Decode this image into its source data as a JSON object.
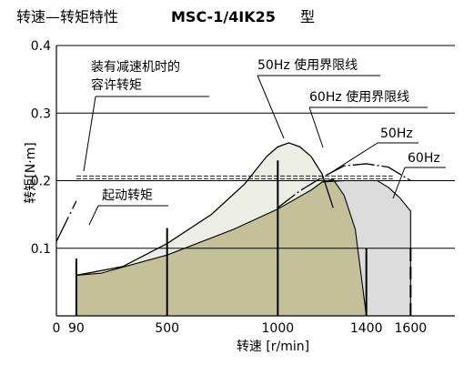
{
  "chart_data": {
    "type": "area",
    "title_prefix": "转速—转矩特性",
    "model": "MSC-1/4IK25",
    "model_suffix": "型",
    "xlabel": "转速 [r/min]",
    "ylabel": "转矩[N·m]",
    "xlim": [
      0,
      1800
    ],
    "ylim": [
      0,
      0.4
    ],
    "x_ticks": [
      {
        "value": 0,
        "label": "0"
      },
      {
        "value": 90,
        "label": "90"
      },
      {
        "value": 500,
        "label": "500"
      },
      {
        "value": 1000,
        "label": "1000"
      },
      {
        "value": 1400,
        "label": "1400"
      },
      {
        "value": 1600,
        "label": "1600"
      }
    ],
    "y_ticks": [
      {
        "value": 0.1,
        "label": "0.1"
      },
      {
        "value": 0.2,
        "label": "0.2"
      },
      {
        "value": 0.3,
        "label": "0.3"
      },
      {
        "value": 0.4,
        "label": "0.4"
      }
    ],
    "grid": {
      "horizontal": true,
      "vertical": false
    },
    "colors": {
      "zone_50hz": "#c4c19a",
      "zone_60hz": "#dcdcdc",
      "zone_60hz_light": "#eceee6",
      "line": "#000000"
    },
    "series": [
      {
        "name": "50Hz",
        "x": [
          90,
          200,
          500,
          800,
          1000,
          1150,
          1200,
          1250,
          1300,
          1350,
          1400
        ],
        "y": [
          0.06,
          0.063,
          0.09,
          0.128,
          0.158,
          0.186,
          0.198,
          0.202,
          0.178,
          0.128,
          0.0
        ]
      },
      {
        "name": "60Hz",
        "x": [
          1150,
          1200,
          1300,
          1400,
          1450,
          1500,
          1550,
          1600,
          1600
        ],
        "y": [
          0.186,
          0.198,
          0.2,
          0.2,
          0.2,
          0.19,
          0.175,
          0.155,
          0.0
        ]
      },
      {
        "name": "50Hz 使用界限线",
        "x": [
          90,
          300,
          500,
          700,
          850,
          950,
          1000,
          1050,
          1100,
          1150,
          1200,
          1250
        ],
        "y": [
          0.06,
          0.073,
          0.107,
          0.15,
          0.195,
          0.236,
          0.25,
          0.256,
          0.25,
          0.236,
          0.21,
          0.16
        ]
      },
      {
        "name": "60Hz 使用界限线",
        "x": [
          1000,
          1100,
          1200,
          1300,
          1400,
          1500,
          1550,
          1600
        ],
        "y": [
          0.16,
          0.185,
          0.205,
          0.222,
          0.225,
          0.22,
          0.21,
          0.2
        ]
      }
    ],
    "reference_lines": [
      {
        "label": "装有减速机时的\n容许转矩",
        "y": 0.205
      },
      {
        "label": "起动转矩",
        "x_range": [
          0,
          90
        ],
        "y_range": [
          0.11,
          0.17
        ]
      }
    ],
    "vertical_markers": [
      90,
      500,
      1000,
      1400,
      1600
    ],
    "annotations": [
      {
        "text": "装有减速机时的"
      },
      {
        "text": "容许转矩"
      },
      {
        "text": "50Hz 使用界限线"
      },
      {
        "text": "60Hz 使用界限线"
      },
      {
        "text": "50Hz"
      },
      {
        "text": "60Hz"
      },
      {
        "text": "起动转矩"
      }
    ]
  }
}
